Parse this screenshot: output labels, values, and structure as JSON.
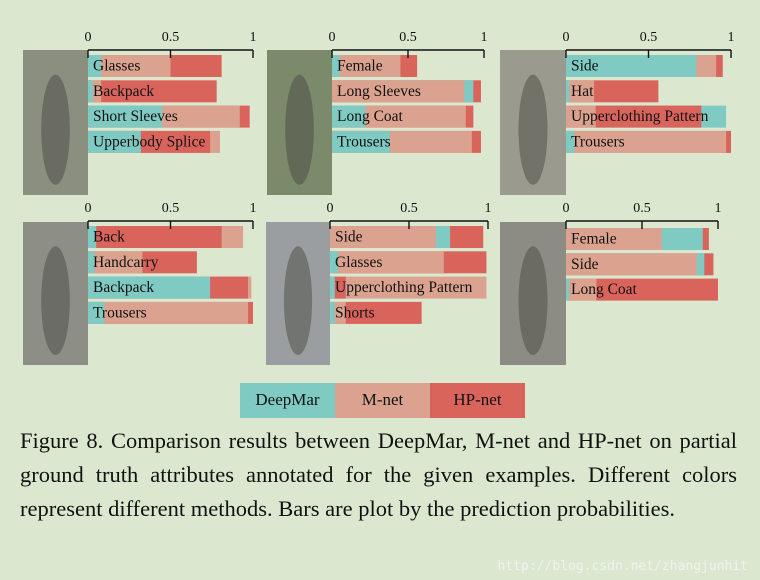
{
  "chart_data": [
    {
      "type": "bar",
      "orientation": "horizontal",
      "categories": [
        "Glasses",
        "Backpack",
        "Short Sleeves",
        "Upperbody Splice"
      ],
      "series": [
        {
          "name": "DeepMar",
          "color": "#7fcac2",
          "values": [
            0.08,
            0.03,
            0.45,
            0.32
          ]
        },
        {
          "name": "M-net",
          "color": "#dba38f",
          "values": [
            0.5,
            0.08,
            0.92,
            0.8
          ]
        },
        {
          "name": "HP-net",
          "color": "#d9645c",
          "values": [
            0.81,
            0.78,
            0.98,
            0.74
          ]
        }
      ],
      "xlim": [
        0,
        1
      ],
      "xticks": [
        0,
        0.5,
        1
      ]
    },
    {
      "type": "bar",
      "orientation": "horizontal",
      "categories": [
        "Female",
        "Long Sleeves",
        "Long Coat",
        "Trousers"
      ],
      "series": [
        {
          "name": "DeepMar",
          "color": "#7fcac2",
          "values": [
            0.05,
            0.93,
            0.22,
            0.38
          ]
        },
        {
          "name": "M-net",
          "color": "#dba38f",
          "values": [
            0.45,
            0.87,
            0.88,
            0.92
          ]
        },
        {
          "name": "HP-net",
          "color": "#d9645c",
          "values": [
            0.56,
            0.98,
            0.93,
            0.98
          ]
        }
      ],
      "xlim": [
        0,
        1
      ],
      "xticks": [
        0,
        0.5,
        1
      ]
    },
    {
      "type": "bar",
      "orientation": "horizontal",
      "categories": [
        "Side",
        "Hat",
        "Upperclothing Pattern",
        "Trousers"
      ],
      "series": [
        {
          "name": "DeepMar",
          "color": "#7fcac2",
          "values": [
            0.79,
            0.02,
            0.97,
            0.05
          ]
        },
        {
          "name": "M-net",
          "color": "#dba38f",
          "values": [
            0.91,
            0.17,
            0.18,
            0.97
          ]
        },
        {
          "name": "HP-net",
          "color": "#d9645c",
          "values": [
            0.95,
            0.56,
            0.82,
            1.0
          ]
        }
      ],
      "xlim": [
        0,
        1
      ],
      "xticks": [
        0,
        0.5,
        1
      ]
    },
    {
      "type": "bar",
      "orientation": "horizontal",
      "categories": [
        "Back",
        "Handcarry",
        "Backpack",
        "Trousers"
      ],
      "series": [
        {
          "name": "DeepMar",
          "color": "#7fcac2",
          "values": [
            0.05,
            0.04,
            0.74,
            0.1
          ]
        },
        {
          "name": "M-net",
          "color": "#dba38f",
          "values": [
            0.94,
            0.33,
            0.99,
            0.97
          ]
        },
        {
          "name": "HP-net",
          "color": "#d9645c",
          "values": [
            0.81,
            0.66,
            0.97,
            1.0
          ]
        }
      ],
      "xlim": [
        0,
        1
      ],
      "xticks": [
        0,
        0.5,
        1
      ]
    },
    {
      "type": "bar",
      "orientation": "horizontal",
      "categories": [
        "Side",
        "Glasses",
        "Upperclothing Pattern",
        "Shorts"
      ],
      "series": [
        {
          "name": "DeepMar",
          "color": "#7fcac2",
          "values": [
            0.76,
            0.05,
            0.03,
            0.03
          ]
        },
        {
          "name": "M-net",
          "color": "#dba38f",
          "values": [
            0.67,
            0.72,
            0.99,
            0.1
          ]
        },
        {
          "name": "HP-net",
          "color": "#d9645c",
          "values": [
            0.97,
            0.99,
            0.1,
            0.58
          ]
        }
      ],
      "xlim": [
        0,
        1
      ],
      "xticks": [
        0,
        0.5,
        1
      ]
    },
    {
      "type": "bar",
      "orientation": "horizontal",
      "categories": [
        "Female",
        "Side",
        "Long Coat"
      ],
      "series": [
        {
          "name": "DeepMar",
          "color": "#7fcac2",
          "values": [
            0.9,
            0.91,
            0.02
          ]
        },
        {
          "name": "M-net",
          "color": "#dba38f",
          "values": [
            0.63,
            0.86,
            0.2
          ]
        },
        {
          "name": "HP-net",
          "color": "#d9645c",
          "values": [
            0.94,
            0.97,
            1.0
          ]
        }
      ],
      "xlim": [
        0,
        1
      ],
      "xticks": [
        0,
        0.5,
        1
      ]
    }
  ],
  "caption": "Figure 8.  Comparison results between DeepMar, M-net and HP-net on partial ground truth attributes annotated for the given examples. Different colors represent different methods. Bars are plot by the prediction probabilities.",
  "watermark": "http://blog.csdn.net/zhangjunhit"
}
